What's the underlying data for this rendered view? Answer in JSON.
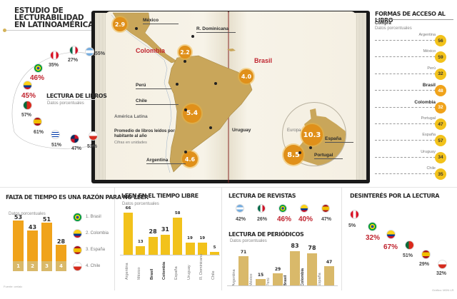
{
  "title": "ESTUDIO DE\nLECTURABILIDAD\nEN LATINOAMÉRICA",
  "libros": {
    "title": "LECTURA DE LIBROS",
    "subtitle": "Datos porcentuales",
    "items": [
      {
        "country": "Argentina",
        "flag": "argentina",
        "value": "55%",
        "highlight": false
      },
      {
        "country": "México",
        "flag": "mexico",
        "value": "27%",
        "highlight": false
      },
      {
        "country": "Perú",
        "flag": "peru",
        "value": "35%",
        "highlight": false
      },
      {
        "country": "Brasil",
        "flag": "brasil",
        "value": "46%",
        "highlight": true
      },
      {
        "country": "Colombia",
        "flag": "colombia",
        "value": "45%",
        "highlight": true
      },
      {
        "country": "Portugal",
        "flag": "portugal",
        "value": "57%",
        "highlight": false
      },
      {
        "country": "España",
        "flag": "espana",
        "value": "61%",
        "highlight": false
      },
      {
        "country": "Uruguay",
        "flag": "uruguay",
        "value": "51%",
        "highlight": false
      },
      {
        "country": "R. Dominicana",
        "flag": "rdominicana",
        "value": "47%",
        "highlight": false
      },
      {
        "country": "Chile",
        "flag": "chile",
        "value": "51%",
        "highlight": false
      }
    ]
  },
  "map": {
    "region_label": "América Latina",
    "legend_title": "Promedio de libros leídos por habitante al año",
    "legend_sub": "Cifras en unidades",
    "europe_label": "Europa",
    "points": [
      {
        "country": "México",
        "value": "2.9",
        "highlight": false
      },
      {
        "country": "R. Dominicana",
        "value": "",
        "highlight": false
      },
      {
        "country": "Colombia",
        "value": "2.2",
        "highlight": true
      },
      {
        "country": "Perú",
        "value": "",
        "highlight": false
      },
      {
        "country": "Brasil",
        "value": "4.0",
        "highlight": true
      },
      {
        "country": "Chile",
        "value": "5.4",
        "highlight": false
      },
      {
        "country": "Uruguay",
        "value": "",
        "highlight": false
      },
      {
        "country": "Argentina",
        "value": "4.6",
        "highlight": false
      },
      {
        "country": "España",
        "value": "10.3",
        "highlight": false
      },
      {
        "country": "Portugal",
        "value": "8.5",
        "highlight": false
      }
    ]
  },
  "acceso": {
    "title": "FORMAS DE ACCESO AL LIBRO",
    "subtitle_bold": "Compra",
    "subtitle": "Datos porcentuales",
    "items": [
      {
        "country": "Argentina",
        "value": "56",
        "highlight": false
      },
      {
        "country": "México",
        "value": "59",
        "highlight": false
      },
      {
        "country": "Perú",
        "value": "32",
        "highlight": false
      },
      {
        "country": "Brasil",
        "value": "48",
        "highlight": true
      },
      {
        "country": "Colombia",
        "value": "32",
        "highlight": true
      },
      {
        "country": "Portugal",
        "value": "47",
        "highlight": false
      },
      {
        "country": "España",
        "value": "57",
        "highlight": false
      },
      {
        "country": "Uruguay",
        "value": "34",
        "highlight": false
      },
      {
        "country": "Chile",
        "value": "35",
        "highlight": false
      }
    ]
  },
  "falta": {
    "title": "FALTA DE TIEMPO ES UNA RAZÓN PARA NO LEER",
    "subtitle": "Datos porcentuales",
    "legend": [
      {
        "label": "1. Brasil",
        "flag": "brasil"
      },
      {
        "label": "2. Colombia",
        "flag": "colombia"
      },
      {
        "label": "3. España",
        "flag": "espana"
      },
      {
        "label": "4. Chile",
        "flag": "chile"
      }
    ],
    "source": "Fuente: cerlalc"
  },
  "revistas": {
    "title": "LECTURA DE REVISTAS",
    "items": [
      {
        "country": "Argentina",
        "flag": "argentina",
        "value": "42%",
        "highlight": false
      },
      {
        "country": "México",
        "flag": "mexico",
        "value": "26%",
        "highlight": false
      },
      {
        "country": "Brasil",
        "flag": "brasil",
        "value": "46%",
        "highlight": true
      },
      {
        "country": "Colombia",
        "flag": "colombia",
        "value": "40%",
        "highlight": true
      },
      {
        "country": "España",
        "flag": "espana",
        "value": "47%",
        "highlight": false
      }
    ]
  },
  "desinteres": {
    "title": "DESINTERÉS POR LA LECTURA",
    "items": [
      {
        "country": "Perú",
        "flag": "peru",
        "value": "5%",
        "highlight": false
      },
      {
        "country": "Brasil",
        "flag": "brasil",
        "value": "32%",
        "highlight": true
      },
      {
        "country": "Colombia",
        "flag": "colombia",
        "value": "67%",
        "highlight": true
      },
      {
        "country": "Portugal",
        "flag": "portugal",
        "value": "51%",
        "highlight": false
      },
      {
        "country": "España",
        "flag": "espana",
        "value": "29%",
        "highlight": false
      },
      {
        "country": "Chile",
        "flag": "chile",
        "value": "32%",
        "highlight": false
      }
    ],
    "credit": "Gráfico: MDN LR"
  },
  "colors": {
    "bar_orange": "#f0a31b",
    "bar_yellow": "#f2c21b",
    "bar_tan": "#d9b96a",
    "highlight_red": "#c0242f",
    "map_land": "#c9a65a"
  },
  "chart_data": [
    {
      "type": "bar",
      "title": "FALTA DE TIEMPO ES UNA RAZÓN PARA NO LEER",
      "subtitle": "Datos porcentuales",
      "categories": [
        "1",
        "2",
        "3",
        "4"
      ],
      "category_names": [
        "Brasil",
        "Colombia",
        "España",
        "Chile"
      ],
      "values": [
        53,
        43,
        51,
        28
      ],
      "ylim": [
        0,
        60
      ],
      "legend": "right"
    },
    {
      "type": "bar",
      "title": "LEEN EN EL TIEMPO LIBRE",
      "subtitle": "Datos porcentuales",
      "categories": [
        "Argentina",
        "México",
        "Brasil",
        "Colombia",
        "España",
        "Uruguay",
        "R. Dominicana",
        "Chile"
      ],
      "bold_categories": [
        "Brasil",
        "Colombia"
      ],
      "values": [
        66,
        13,
        28,
        31,
        58,
        19,
        19,
        5
      ],
      "ylim": [
        0,
        70
      ]
    },
    {
      "type": "bar",
      "title": "LECTURA DE PERIÓDICOS",
      "subtitle": "Datos porcentuales",
      "categories": [
        "Argentina",
        "México",
        "Perú",
        "Brasil",
        "Colombia",
        "España"
      ],
      "bold_categories": [
        "Brasil",
        "Colombia"
      ],
      "values": [
        71,
        15,
        29,
        83,
        78,
        47
      ],
      "ylim": [
        0,
        90
      ]
    }
  ]
}
